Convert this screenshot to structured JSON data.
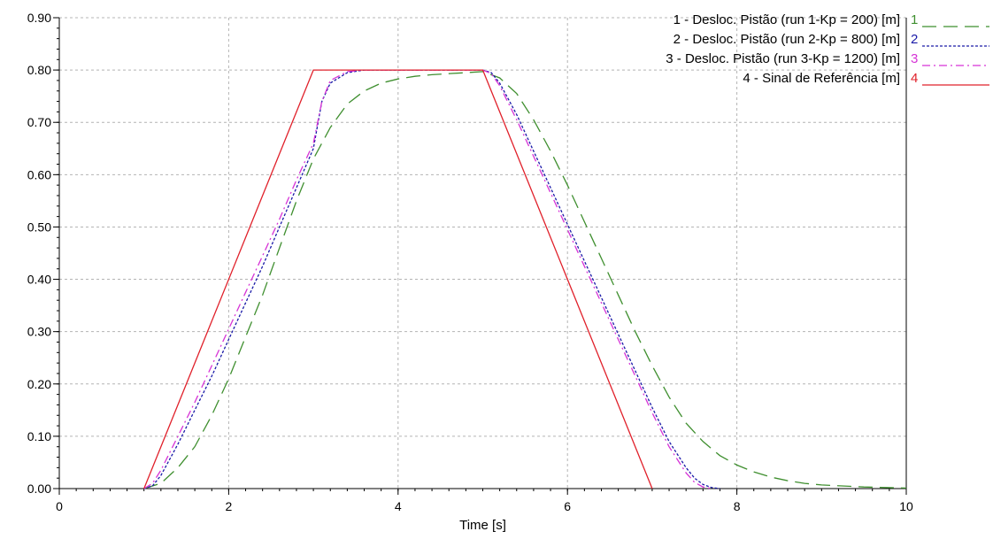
{
  "chart_data": {
    "type": "line",
    "title": "",
    "xlabel": "Time [s]",
    "ylabel": "",
    "xlim": [
      0,
      10
    ],
    "ylim": [
      0,
      0.9
    ],
    "x_ticks": [
      "0",
      "2",
      "4",
      "6",
      "8",
      "10"
    ],
    "y_ticks": [
      "0.00",
      "0.10",
      "0.20",
      "0.30",
      "0.40",
      "0.50",
      "0.60",
      "0.70",
      "0.80",
      "0.90"
    ],
    "grid": true,
    "legend_position": "top-right",
    "series": [
      {
        "id": "1",
        "name": "1 - Desloc. Pistão  (run 1-Kp = 200) [m]",
        "color": "#3f8f2f",
        "style": "long-dash",
        "x": [
          1.0,
          1.2,
          1.4,
          1.6,
          1.8,
          2.0,
          2.2,
          2.4,
          2.6,
          2.8,
          3.0,
          3.2,
          3.4,
          3.6,
          3.8,
          4.0,
          4.2,
          4.4,
          4.6,
          4.8,
          5.0,
          5.2,
          5.4,
          5.6,
          5.8,
          6.0,
          6.2,
          6.4,
          6.6,
          6.8,
          7.0,
          7.2,
          7.4,
          7.6,
          7.8,
          8.0,
          8.2,
          8.4,
          8.6,
          8.8,
          9.0,
          9.5,
          10.0
        ],
        "y": [
          0.0,
          0.01,
          0.04,
          0.08,
          0.14,
          0.21,
          0.29,
          0.37,
          0.46,
          0.55,
          0.63,
          0.69,
          0.735,
          0.76,
          0.775,
          0.783,
          0.788,
          0.791,
          0.793,
          0.795,
          0.797,
          0.785,
          0.755,
          0.705,
          0.645,
          0.58,
          0.51,
          0.44,
          0.37,
          0.3,
          0.235,
          0.175,
          0.125,
          0.09,
          0.063,
          0.045,
          0.032,
          0.022,
          0.015,
          0.01,
          0.007,
          0.003,
          0.001
        ]
      },
      {
        "id": "2",
        "name": "2 - Desloc. Pistão  (run 2-Kp = 800) [m]",
        "color": "#1a1aa8",
        "style": "dotted",
        "x": [
          1.0,
          1.1,
          1.2,
          1.4,
          1.6,
          1.8,
          2.0,
          2.2,
          2.4,
          2.6,
          2.8,
          3.0,
          3.1,
          3.2,
          3.4,
          3.6,
          4.0,
          4.5,
          5.0,
          5.1,
          5.2,
          5.4,
          5.6,
          5.8,
          6.0,
          6.2,
          6.4,
          6.6,
          6.8,
          7.0,
          7.2,
          7.4,
          7.5,
          7.6,
          7.7,
          7.8
        ],
        "y": [
          0.0,
          0.005,
          0.025,
          0.085,
          0.15,
          0.215,
          0.285,
          0.355,
          0.425,
          0.5,
          0.575,
          0.65,
          0.74,
          0.775,
          0.795,
          0.8,
          0.8,
          0.8,
          0.8,
          0.795,
          0.775,
          0.715,
          0.645,
          0.575,
          0.505,
          0.435,
          0.365,
          0.295,
          0.225,
          0.155,
          0.09,
          0.04,
          0.02,
          0.008,
          0.002,
          0.0
        ]
      },
      {
        "id": "3",
        "name": "3 - Desloc. Pistão  (run 3-Kp = 1200) [m]",
        "color": "#d633d6",
        "style": "dash-dot",
        "x": [
          1.0,
          1.1,
          1.2,
          1.4,
          1.6,
          1.8,
          2.0,
          2.2,
          2.4,
          2.6,
          2.8,
          3.0,
          3.1,
          3.2,
          3.4,
          3.6,
          4.0,
          4.5,
          5.0,
          5.1,
          5.2,
          5.4,
          5.6,
          5.8,
          6.0,
          6.2,
          6.4,
          6.6,
          6.8,
          7.0,
          7.2,
          7.4,
          7.5,
          7.6,
          7.7
        ],
        "y": [
          0.0,
          0.01,
          0.035,
          0.1,
          0.165,
          0.235,
          0.305,
          0.375,
          0.445,
          0.515,
          0.59,
          0.66,
          0.74,
          0.78,
          0.797,
          0.8,
          0.8,
          0.8,
          0.8,
          0.793,
          0.77,
          0.705,
          0.635,
          0.565,
          0.495,
          0.425,
          0.355,
          0.285,
          0.215,
          0.145,
          0.08,
          0.03,
          0.012,
          0.003,
          0.0
        ]
      },
      {
        "id": "4",
        "name": "4 - Sinal de Referência [m]",
        "color": "#e0202a",
        "style": "solid",
        "x": [
          1.0,
          3.0,
          5.0,
          7.0
        ],
        "y": [
          0.0,
          0.8,
          0.8,
          0.0
        ]
      }
    ]
  }
}
